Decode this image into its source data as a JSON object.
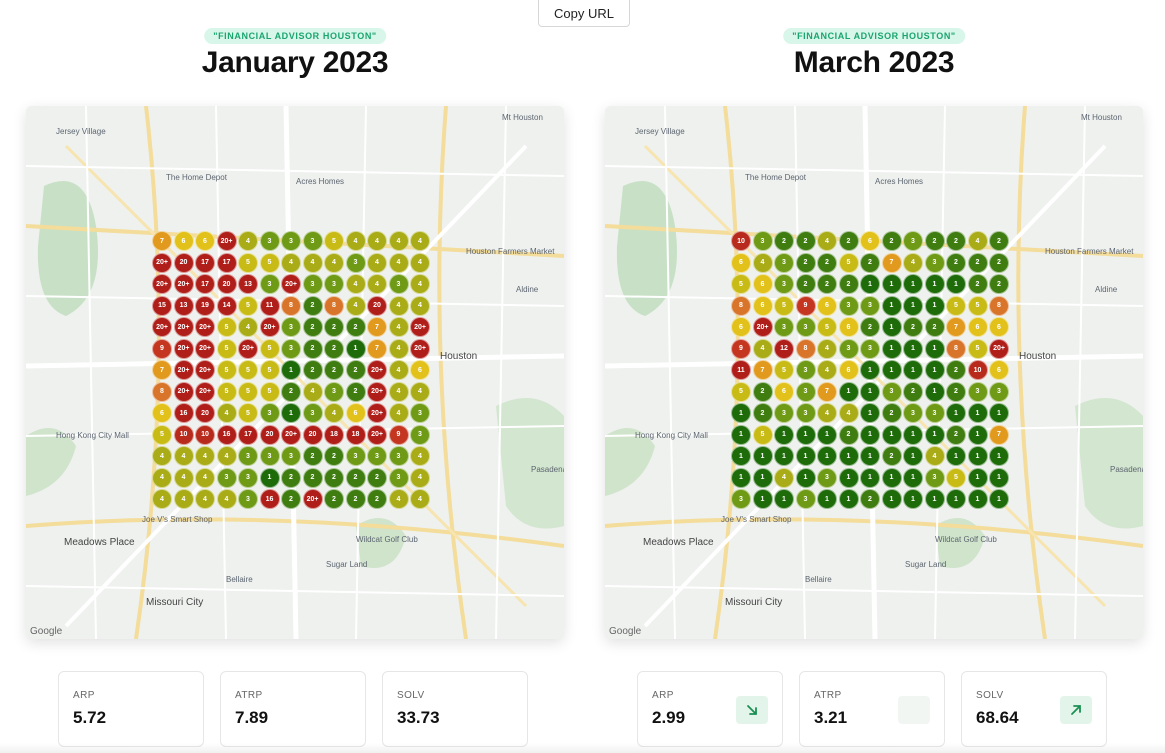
{
  "toolbar": {
    "copy_url_label": "Copy URL"
  },
  "color_scale": {
    "1": "#1e6b0a",
    "2": "#3f7d11",
    "3": "#6e9a16",
    "4": "#a9ac16",
    "5": "#c9bb15",
    "6": "#e2c11a",
    "7": "#e19a1e",
    "8": "#d8752a",
    "9": "#c4361f",
    "10": "#b72a1c",
    "high": "#b01e1a"
  },
  "panels": [
    {
      "keyword": "\"FINANCIAL ADVISOR HOUSTON\"",
      "month": "January 2023",
      "map_labels": [
        "Jersey Village",
        "Mt Houston",
        "Acres Homes",
        "The Home Depot",
        "Houston Farmers Market",
        "Aldine",
        "Meadows Place",
        "Missouri City",
        "Joe V's Smart Shop",
        "Hong Kong City Mall",
        "Bellaire",
        "Sugar Land",
        "Pasadena",
        "Houston",
        "Wildcat Golf Club"
      ],
      "metrics": [
        {
          "label": "ARP",
          "value": "5.72",
          "trend": ""
        },
        {
          "label": "ATRP",
          "value": "7.89",
          "trend": ""
        },
        {
          "label": "SOLV",
          "value": "33.73",
          "trend": ""
        }
      ],
      "grid": [
        [
          "7",
          "6",
          "6",
          "20+",
          "4",
          "3",
          "3",
          "3",
          "5",
          "4",
          "4",
          "4",
          "4"
        ],
        [
          "20+",
          "20",
          "17",
          "17",
          "5",
          "5",
          "4",
          "4",
          "4",
          "3",
          "4",
          "4",
          "4"
        ],
        [
          "20+",
          "20+",
          "17",
          "20",
          "13",
          "3",
          "20+",
          "3",
          "3",
          "4",
          "4",
          "3",
          "4"
        ],
        [
          "15",
          "13",
          "19",
          "14",
          "5",
          "11",
          "8",
          "2",
          "8",
          "4",
          "20",
          "4",
          "4"
        ],
        [
          "20+",
          "20+",
          "20+",
          "5",
          "4",
          "20+",
          "3",
          "2",
          "2",
          "2",
          "7",
          "4",
          "20+"
        ],
        [
          "9",
          "20+",
          "20+",
          "5",
          "20+",
          "5",
          "3",
          "2",
          "2",
          "1",
          "7",
          "4",
          "20+"
        ],
        [
          "7",
          "20+",
          "20+",
          "5",
          "5",
          "5",
          "1",
          "2",
          "2",
          "2",
          "20+",
          "4",
          "6"
        ],
        [
          "8",
          "20+",
          "20+",
          "5",
          "5",
          "5",
          "2",
          "4",
          "3",
          "2",
          "20+",
          "4",
          "4"
        ],
        [
          "6",
          "16",
          "20",
          "4",
          "5",
          "3",
          "1",
          "3",
          "4",
          "6",
          "20+",
          "4",
          "3"
        ],
        [
          "5",
          "10",
          "10",
          "16",
          "17",
          "20",
          "20+",
          "20",
          "18",
          "18",
          "20+",
          "9",
          "3"
        ],
        [
          "4",
          "4",
          "4",
          "4",
          "3",
          "3",
          "3",
          "2",
          "2",
          "3",
          "3",
          "3",
          "4"
        ],
        [
          "4",
          "4",
          "4",
          "3",
          "3",
          "1",
          "2",
          "2",
          "2",
          "2",
          "2",
          "3",
          "4"
        ],
        [
          "4",
          "4",
          "4",
          "4",
          "3",
          "16",
          "2",
          "20+",
          "2",
          "2",
          "2",
          "4",
          "4"
        ]
      ]
    },
    {
      "keyword": "\"FINANCIAL ADVISOR HOUSTON\"",
      "month": "March 2023",
      "map_labels": [
        "Jersey Village",
        "Mt Houston",
        "Acres Homes",
        "The Home Depot",
        "Houston Farmers Market",
        "Aldine",
        "Meadows Place",
        "Missouri City",
        "Joe V's Smart Shop",
        "Hong Kong City Mall",
        "Bellaire",
        "Sugar Land",
        "Pasadena",
        "Houston",
        "Wildcat Golf Club"
      ],
      "metrics": [
        {
          "label": "ARP",
          "value": "2.99",
          "trend": "down"
        },
        {
          "label": "ATRP",
          "value": "3.21",
          "trend": "none"
        },
        {
          "label": "SOLV",
          "value": "68.64",
          "trend": "up"
        }
      ],
      "grid": [
        [
          "10",
          "3",
          "2",
          "2",
          "4",
          "2",
          "6",
          "2",
          "3",
          "2",
          "2",
          "4",
          "2"
        ],
        [
          "6",
          "4",
          "3",
          "2",
          "2",
          "5",
          "2",
          "7",
          "4",
          "3",
          "2",
          "2",
          "2"
        ],
        [
          "5",
          "6",
          "3",
          "2",
          "2",
          "2",
          "1",
          "1",
          "1",
          "1",
          "1",
          "2",
          "2"
        ],
        [
          "8",
          "6",
          "5",
          "9",
          "6",
          "3",
          "3",
          "1",
          "1",
          "1",
          "5",
          "5",
          "8"
        ],
        [
          "6",
          "20+",
          "3",
          "3",
          "5",
          "6",
          "2",
          "1",
          "2",
          "2",
          "7",
          "6",
          "6"
        ],
        [
          "9",
          "4",
          "12",
          "8",
          "4",
          "3",
          "3",
          "1",
          "1",
          "1",
          "8",
          "5",
          "20+"
        ],
        [
          "11",
          "7",
          "5",
          "3",
          "4",
          "6",
          "1",
          "1",
          "1",
          "1",
          "2",
          "10",
          "6"
        ],
        [
          "5",
          "2",
          "6",
          "3",
          "7",
          "1",
          "1",
          "3",
          "2",
          "1",
          "2",
          "3",
          "3"
        ],
        [
          "1",
          "2",
          "3",
          "3",
          "4",
          "4",
          "1",
          "2",
          "3",
          "3",
          "1",
          "1",
          "1"
        ],
        [
          "1",
          "5",
          "1",
          "1",
          "1",
          "2",
          "1",
          "1",
          "1",
          "1",
          "2",
          "1",
          "7"
        ],
        [
          "1",
          "1",
          "1",
          "1",
          "1",
          "1",
          "1",
          "2",
          "1",
          "4",
          "1",
          "1",
          "1"
        ],
        [
          "1",
          "1",
          "4",
          "1",
          "3",
          "1",
          "1",
          "1",
          "1",
          "3",
          "5",
          "1",
          "1"
        ],
        [
          "3",
          "1",
          "1",
          "3",
          "1",
          "1",
          "2",
          "1",
          "1",
          "1",
          "1",
          "1",
          "1"
        ]
      ]
    }
  ]
}
